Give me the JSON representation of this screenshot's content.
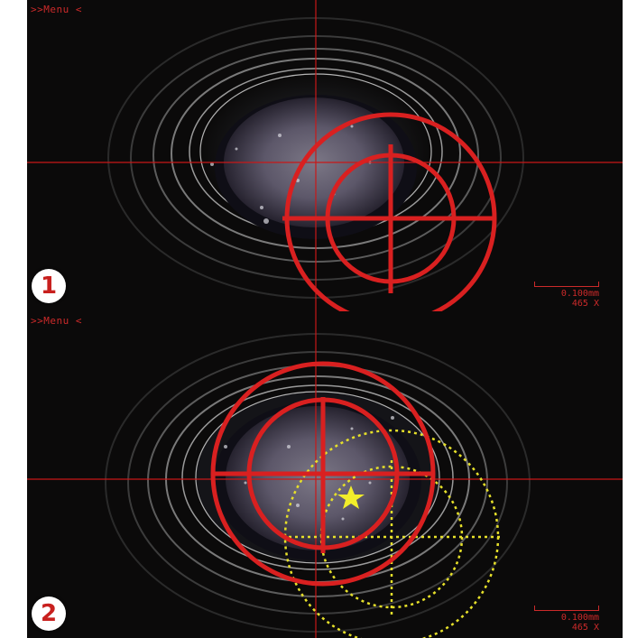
{
  "panels": [
    {
      "menu_label": ">>Menu <",
      "badge": "1",
      "scale_line1": "0.100mm",
      "scale_line2": "465 X"
    },
    {
      "menu_label": ">>Menu <",
      "badge": "2",
      "scale_line1": "0.100mm",
      "scale_line2": "465 X"
    }
  ],
  "colors": {
    "reticle": "#d92020",
    "previous_reticle": "#e6e02a",
    "crosshair": "#c81818",
    "star": "#f2ee2a"
  }
}
